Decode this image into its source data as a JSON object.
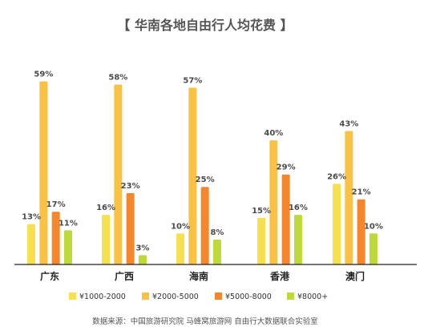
{
  "chart_data": {
    "type": "bar",
    "title": "【 华南各地自由行人均花费 】",
    "categories": [
      "广东",
      "广西",
      "海南",
      "香港",
      "澳门"
    ],
    "series": [
      {
        "name": "¥1000-2000",
        "color": "#F7E04E",
        "values": [
          13,
          16,
          10,
          15,
          26
        ]
      },
      {
        "name": "¥2000-5000",
        "color": "#F9C244",
        "values": [
          59,
          58,
          57,
          40,
          43
        ]
      },
      {
        "name": "¥5000-8000",
        "color": "#F5862B",
        "values": [
          17,
          23,
          25,
          29,
          21
        ]
      },
      {
        "name": "¥8000+",
        "color": "#BDD93A",
        "values": [
          11,
          3,
          8,
          16,
          10
        ]
      }
    ],
    "value_suffix": "%",
    "ylim": [
      0,
      65
    ],
    "grid": false,
    "legend_position": "bottom",
    "source": "数据来源：中国旅游研究院 马蜂窝旅游网 自由行大数据联合实验室",
    "axis_color": "#222222"
  }
}
